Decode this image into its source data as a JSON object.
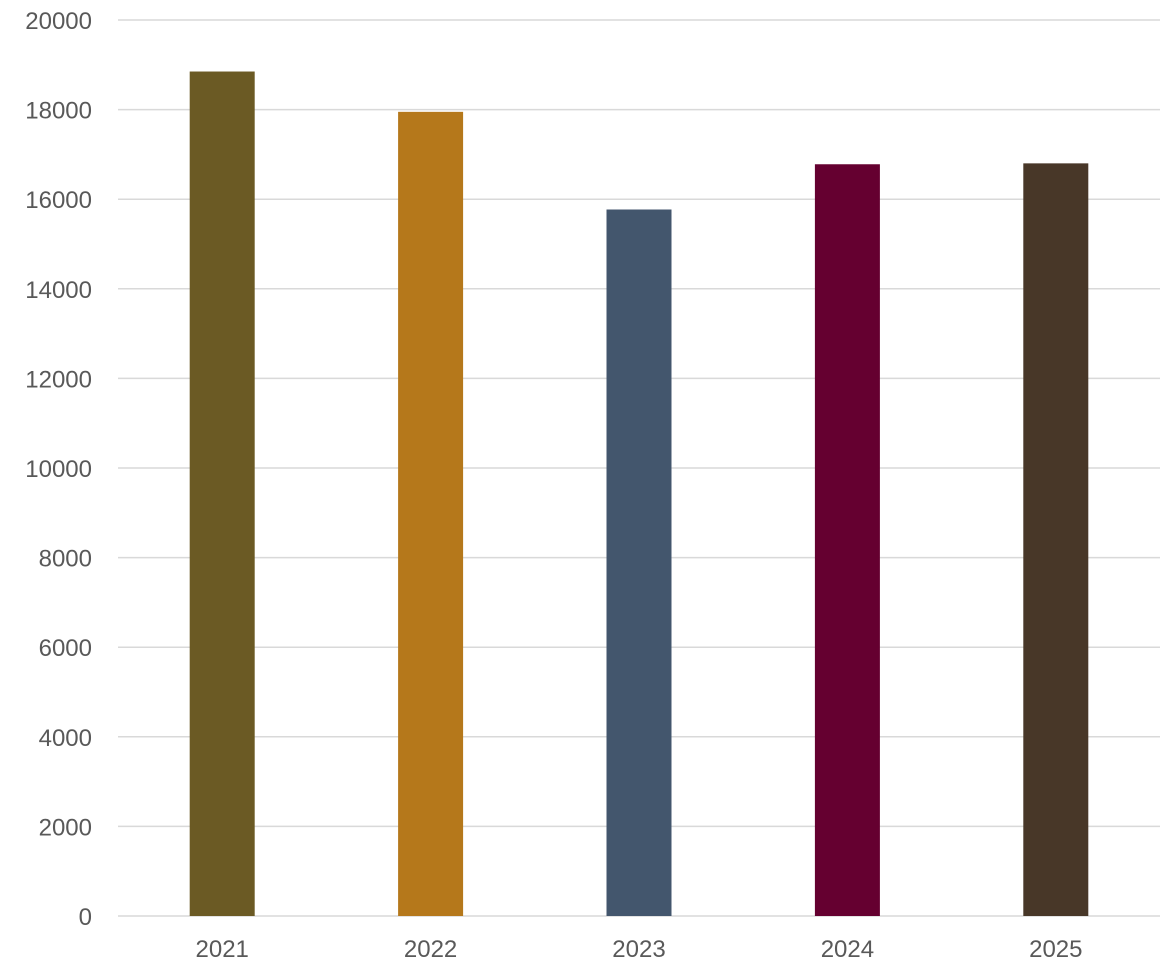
{
  "chart_data": {
    "type": "bar",
    "title": "",
    "xlabel": "",
    "ylabel": "",
    "categories": [
      "2021",
      "2022",
      "2023",
      "2024",
      "2025"
    ],
    "values": [
      18850,
      17950,
      15770,
      16780,
      16800
    ],
    "bar_colors": [
      "#6b5a24",
      "#b5781b",
      "#43566d",
      "#650030",
      "#483728"
    ],
    "ylim": [
      0,
      20000
    ],
    "yticks": [
      0,
      2000,
      4000,
      6000,
      8000,
      10000,
      12000,
      14000,
      16000,
      18000,
      20000
    ],
    "ytick_labels": [
      "0",
      "2000",
      "4000",
      "6000",
      "8000",
      "10000",
      "12000",
      "14000",
      "16000",
      "18000",
      "20000"
    ],
    "grid": true,
    "legend": "none",
    "gridline_color": "#d9d9d9",
    "tick_label_color": "#595959"
  }
}
